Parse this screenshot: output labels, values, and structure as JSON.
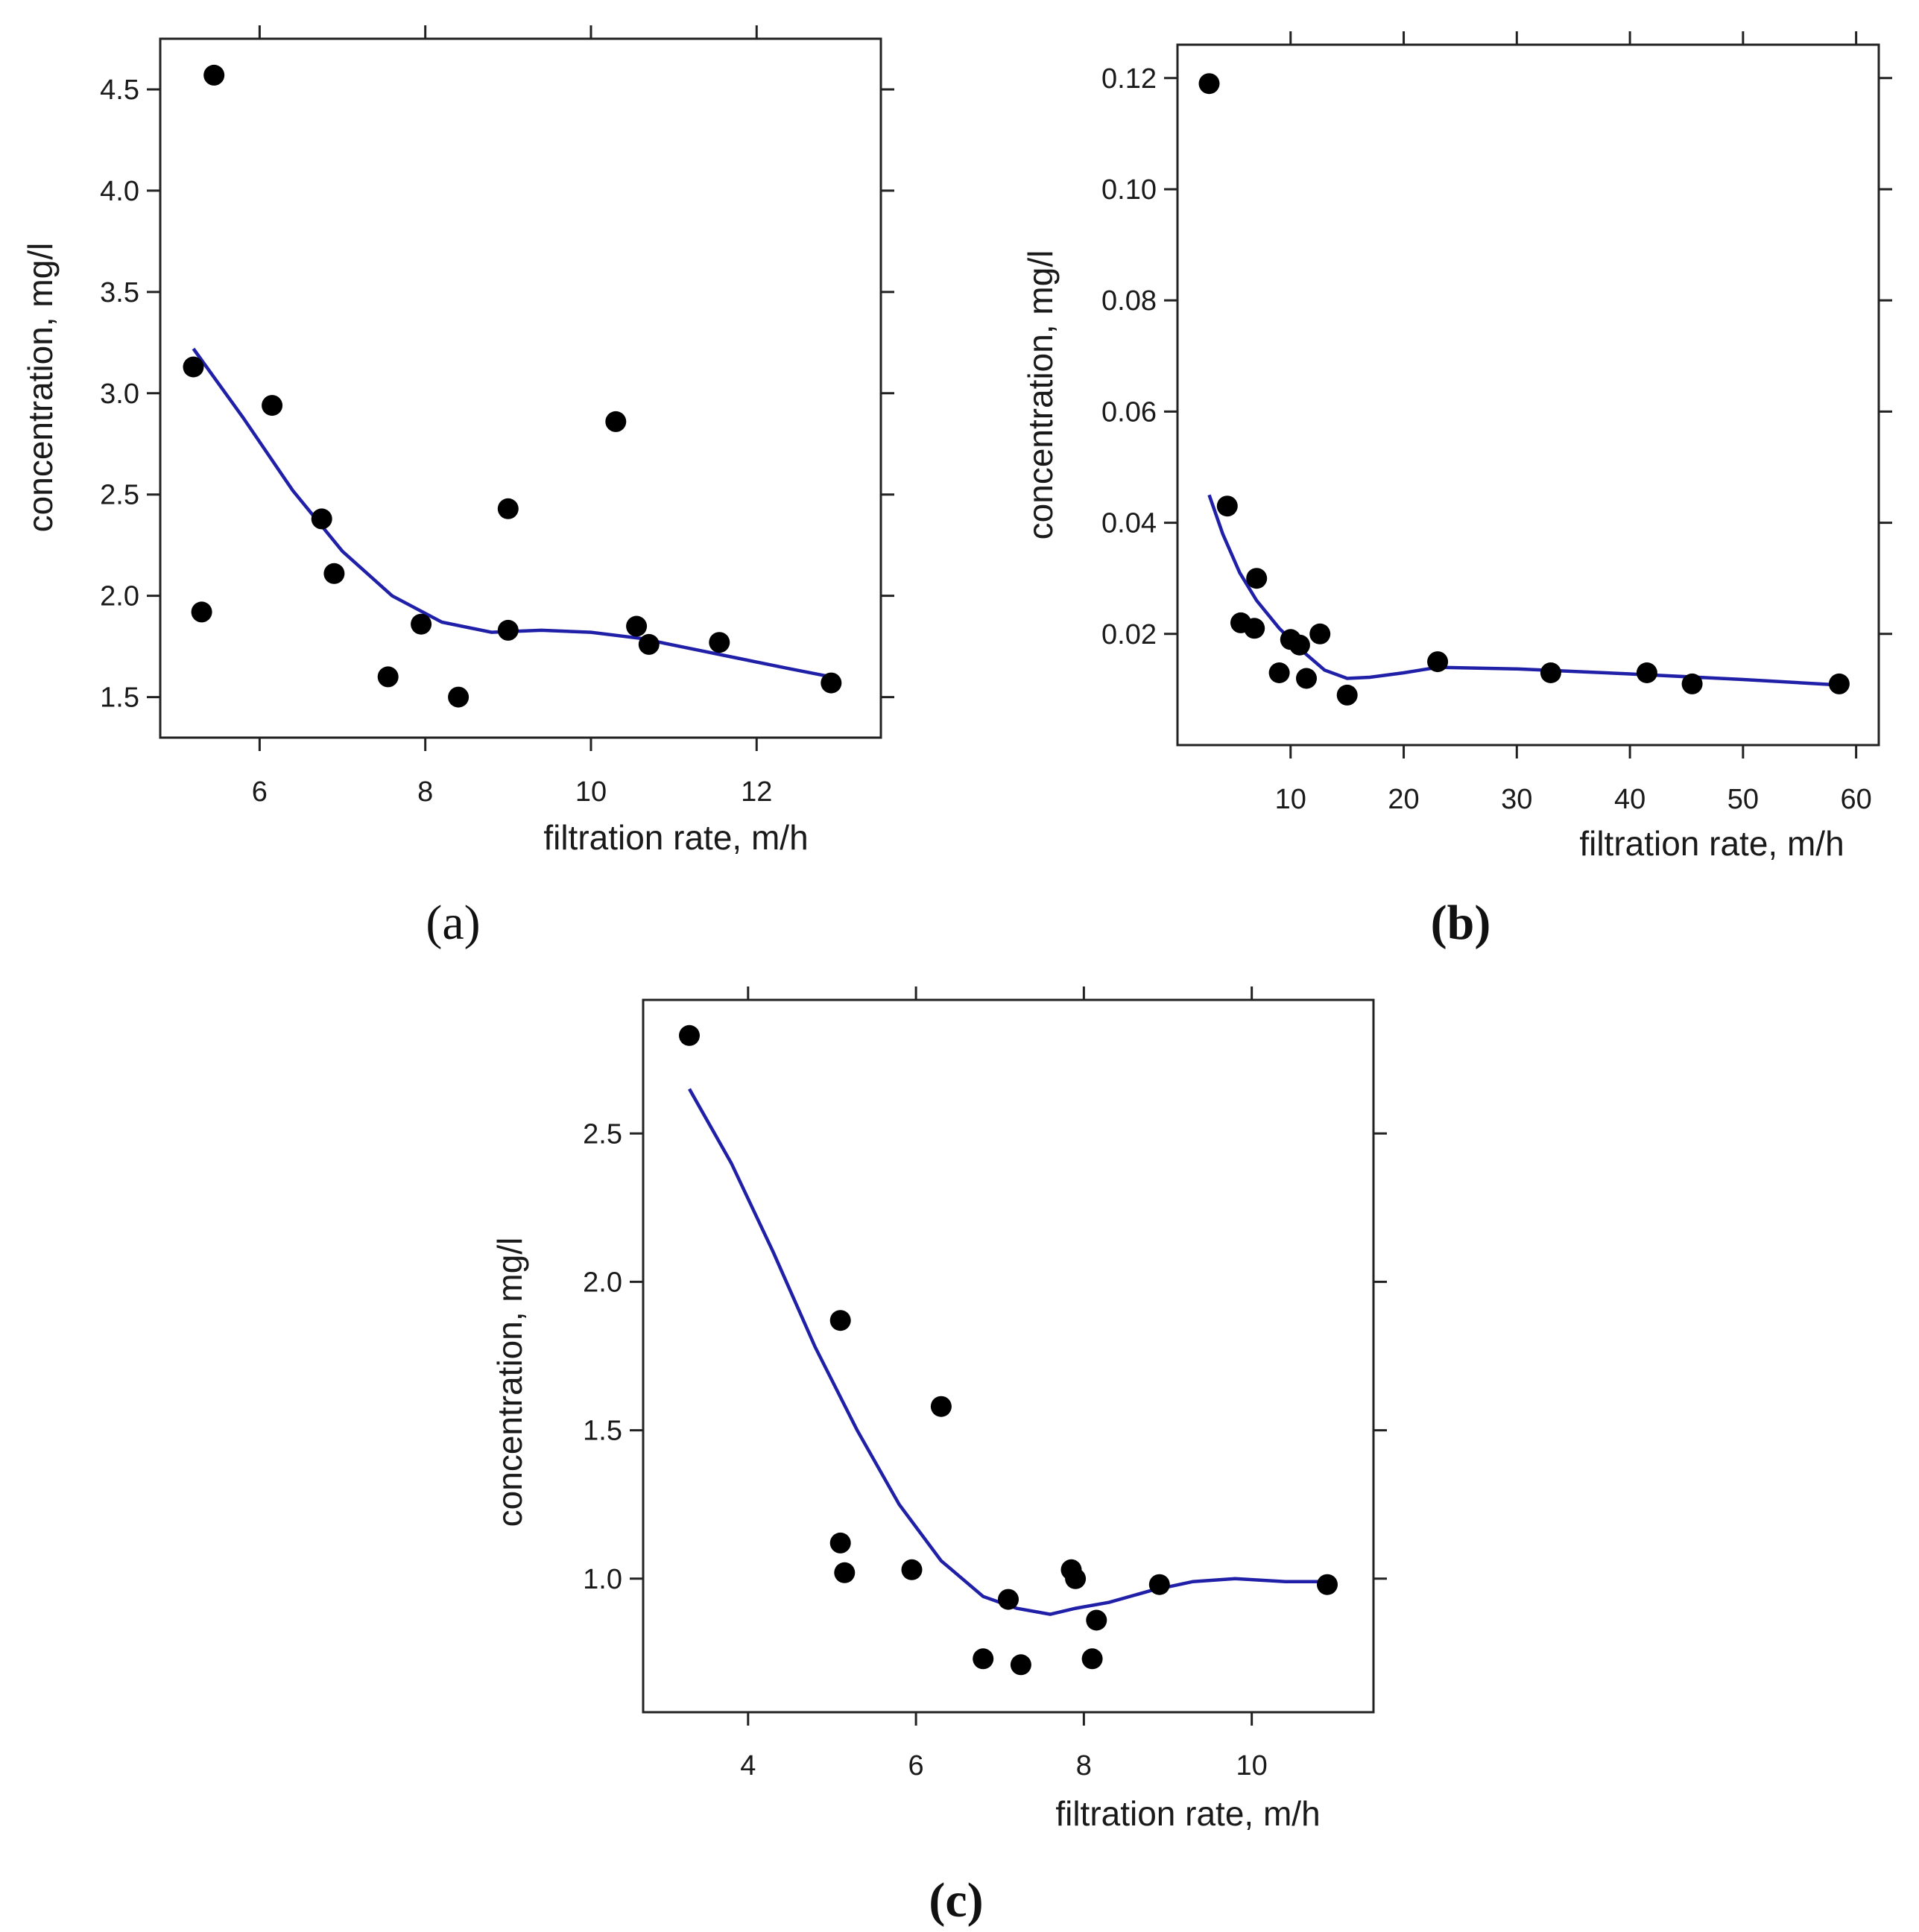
{
  "chart_data": [
    {
      "type": "scatter",
      "panel_label": "(a)",
      "xlabel": "filtration rate, m/h",
      "ylabel": "concentration, mg/l",
      "xlim": [
        4.8,
        13.5
      ],
      "ylim": [
        1.3,
        4.75
      ],
      "xticks": [
        6,
        8,
        10,
        12
      ],
      "xtick_labels": [
        "6",
        "8",
        "10",
        "12"
      ],
      "yticks": [
        1.5,
        2.0,
        2.5,
        3.0,
        3.5,
        4.0,
        4.5
      ],
      "ytick_labels": [
        "1.5",
        "2.0",
        "2.5",
        "3.0",
        "3.5",
        "4.0",
        "4.5"
      ],
      "points": [
        {
          "x": 5.2,
          "y": 3.13
        },
        {
          "x": 5.3,
          "y": 1.92
        },
        {
          "x": 5.45,
          "y": 4.57
        },
        {
          "x": 6.15,
          "y": 2.94
        },
        {
          "x": 6.75,
          "y": 2.38
        },
        {
          "x": 6.9,
          "y": 2.11
        },
        {
          "x": 7.55,
          "y": 1.6
        },
        {
          "x": 7.95,
          "y": 1.86
        },
        {
          "x": 8.4,
          "y": 1.5
        },
        {
          "x": 9.0,
          "y": 2.43
        },
        {
          "x": 9.0,
          "y": 1.83
        },
        {
          "x": 10.3,
          "y": 2.86
        },
        {
          "x": 10.55,
          "y": 1.85
        },
        {
          "x": 10.7,
          "y": 1.76
        },
        {
          "x": 11.55,
          "y": 1.77
        },
        {
          "x": 12.9,
          "y": 1.57
        }
      ],
      "fit_line": {
        "x": [
          5.2,
          5.8,
          6.4,
          7.0,
          7.6,
          8.2,
          8.8,
          9.4,
          10.0,
          10.6,
          11.2,
          11.8,
          12.4,
          12.9
        ],
        "y": [
          3.22,
          2.88,
          2.52,
          2.22,
          2.0,
          1.87,
          1.82,
          1.83,
          1.82,
          1.79,
          1.74,
          1.69,
          1.64,
          1.6
        ]
      }
    },
    {
      "type": "scatter",
      "panel_label": "(b)",
      "xlabel": "filtration rate, m/h",
      "ylabel": "concentration, mg/l",
      "xlim": [
        0,
        62
      ],
      "ylim": [
        0.0,
        0.126
      ],
      "xticks": [
        10,
        20,
        30,
        40,
        50,
        60
      ],
      "xtick_labels": [
        "10",
        "20",
        "30",
        "40",
        "50",
        "60"
      ],
      "yticks": [
        0.02,
        0.04,
        0.06,
        0.08,
        0.1,
        0.12
      ],
      "ytick_labels": [
        "0.02",
        "0.04",
        "0.06",
        "0.08",
        "0.10",
        "0.12"
      ],
      "points": [
        {
          "x": 2.8,
          "y": 0.119
        },
        {
          "x": 4.4,
          "y": 0.043
        },
        {
          "x": 5.6,
          "y": 0.022
        },
        {
          "x": 6.8,
          "y": 0.021
        },
        {
          "x": 7.0,
          "y": 0.03
        },
        {
          "x": 9.0,
          "y": 0.013
        },
        {
          "x": 10.0,
          "y": 0.019
        },
        {
          "x": 10.8,
          "y": 0.018
        },
        {
          "x": 11.4,
          "y": 0.012
        },
        {
          "x": 12.6,
          "y": 0.02
        },
        {
          "x": 15.0,
          "y": 0.009
        },
        {
          "x": 23.0,
          "y": 0.015
        },
        {
          "x": 33.0,
          "y": 0.013
        },
        {
          "x": 41.5,
          "y": 0.013
        },
        {
          "x": 45.5,
          "y": 0.011
        },
        {
          "x": 58.5,
          "y": 0.011
        }
      ],
      "fit_line": {
        "x": [
          2.8,
          4.0,
          5.5,
          7.0,
          9.0,
          11.0,
          13.0,
          15.0,
          17.0,
          20.0,
          23.0,
          30.0,
          40.0,
          50.0,
          58.5
        ],
        "y": [
          0.045,
          0.038,
          0.031,
          0.026,
          0.021,
          0.017,
          0.0135,
          0.012,
          0.0122,
          0.013,
          0.014,
          0.0137,
          0.0128,
          0.0118,
          0.0108
        ]
      }
    },
    {
      "type": "scatter",
      "panel_label": "(c)",
      "xlabel": "filtration rate, m/h",
      "ylabel": "concentration, mg/l",
      "xlim": [
        2.75,
        11.45
      ],
      "ylim": [
        0.55,
        2.95
      ],
      "xticks": [
        4,
        6,
        8,
        10
      ],
      "xtick_labels": [
        "4",
        "6",
        "8",
        "10"
      ],
      "yticks": [
        1.0,
        1.5,
        2.0,
        2.5
      ],
      "ytick_labels": [
        "1.0",
        "1.5",
        "2.0",
        "2.5"
      ],
      "points": [
        {
          "x": 3.3,
          "y": 2.83
        },
        {
          "x": 5.1,
          "y": 1.87
        },
        {
          "x": 5.1,
          "y": 1.12
        },
        {
          "x": 5.15,
          "y": 1.02
        },
        {
          "x": 5.95,
          "y": 1.03
        },
        {
          "x": 6.3,
          "y": 1.58
        },
        {
          "x": 6.8,
          "y": 0.73
        },
        {
          "x": 7.1,
          "y": 0.93
        },
        {
          "x": 7.25,
          "y": 0.71
        },
        {
          "x": 7.85,
          "y": 1.03
        },
        {
          "x": 7.9,
          "y": 1.0
        },
        {
          "x": 8.1,
          "y": 0.73
        },
        {
          "x": 8.15,
          "y": 0.86
        },
        {
          "x": 8.9,
          "y": 0.98
        },
        {
          "x": 10.9,
          "y": 0.98
        }
      ],
      "fit_line": {
        "x": [
          3.3,
          3.8,
          4.3,
          4.8,
          5.3,
          5.8,
          6.3,
          6.8,
          7.2,
          7.6,
          7.9,
          8.3,
          8.8,
          9.3,
          9.8,
          10.4,
          10.9
        ],
        "y": [
          2.65,
          2.4,
          2.1,
          1.78,
          1.5,
          1.25,
          1.06,
          0.94,
          0.9,
          0.88,
          0.9,
          0.92,
          0.96,
          0.99,
          1.0,
          0.99,
          0.99
        ]
      }
    }
  ]
}
